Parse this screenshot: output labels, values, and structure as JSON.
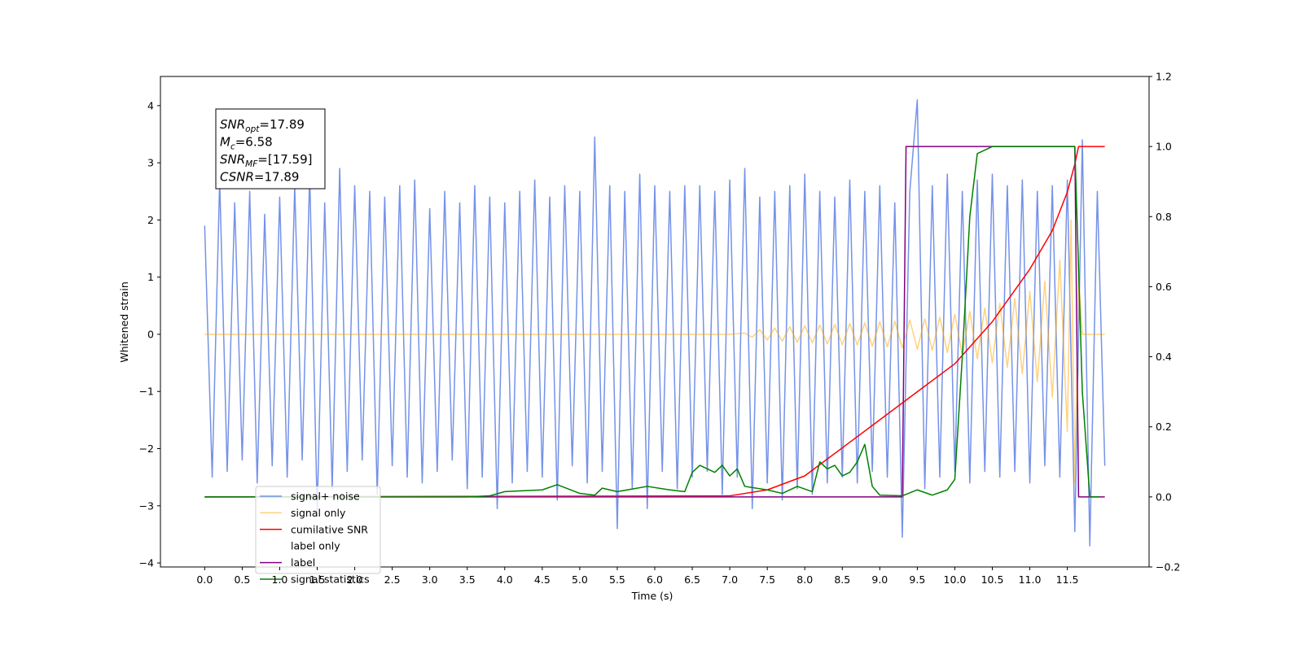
{
  "chart_data": {
    "type": "line",
    "xlabel": "Time (s)",
    "ylabel": "Whitened strain",
    "xlim": [
      -0.59,
      12.59
    ],
    "ylim": [
      -4.07,
      4.51
    ],
    "y2lim": [
      -0.2,
      1.2
    ],
    "xticks": [
      {
        "value": 0,
        "label": "0.0"
      },
      0.5,
      {
        "value": 1,
        "label": "1.0"
      },
      1.5,
      {
        "value": 2,
        "label": "2.0"
      },
      2.5,
      {
        "value": 3,
        "label": "3.0"
      },
      3.5,
      {
        "value": 4,
        "label": "4.0"
      },
      4.5,
      {
        "value": 5,
        "label": "5.0"
      },
      5.5,
      {
        "value": 6,
        "label": "6.0"
      },
      6.5,
      {
        "value": 7,
        "label": "7.0"
      },
      7.5,
      {
        "value": 8,
        "label": "8.0"
      },
      8.5,
      {
        "value": 9,
        "label": "9.0"
      },
      9.5,
      {
        "value": 10,
        "label": "10.0"
      },
      10.5,
      {
        "value": 11,
        "label": "11.0"
      },
      11.5
    ],
    "yticks": [
      {
        "value": -4,
        "label": "−4"
      },
      {
        "value": -3,
        "label": "−3"
      },
      {
        "value": -2,
        "label": "−2"
      },
      {
        "value": -1,
        "label": "−1"
      },
      0,
      1,
      2,
      3,
      4
    ],
    "y2ticks": [
      {
        "value": -0.2,
        "label": "−0.2"
      },
      {
        "value": 0,
        "label": "0.0"
      },
      0.2,
      0.4,
      0.6,
      0.8,
      {
        "value": 1,
        "label": "1.0"
      },
      1.2
    ],
    "annotation": [
      [
        "SNR",
        "opt",
        "=17.89"
      ],
      [
        "M",
        "c",
        "=6.58"
      ],
      [
        "SNR",
        "MF",
        "=[17.59]"
      ],
      [
        "CSNR",
        "",
        "=17.89"
      ]
    ],
    "series": [
      {
        "name": "signal+ noise",
        "color": "#7592e8",
        "x": [
          0,
          0.1,
          0.2,
          0.3,
          0.4,
          0.5,
          0.6,
          0.7,
          0.8,
          0.9,
          1,
          1.1,
          1.2,
          1.3,
          1.4,
          1.5,
          1.6,
          1.7,
          1.8,
          1.9,
          2,
          2.1,
          2.2,
          2.3,
          2.4,
          2.5,
          2.6,
          2.7,
          2.8,
          2.9,
          3,
          3.1,
          3.2,
          3.3,
          3.4,
          3.5,
          3.6,
          3.7,
          3.8,
          3.9,
          4,
          4.1,
          4.2,
          4.3,
          4.4,
          4.5,
          4.6,
          4.7,
          4.8,
          4.9,
          5,
          5.1,
          5.2,
          5.3,
          5.4,
          5.5,
          5.6,
          5.7,
          5.8,
          5.9,
          6,
          6.1,
          6.2,
          6.3,
          6.4,
          6.5,
          6.6,
          6.7,
          6.8,
          6.9,
          7,
          7.1,
          7.2,
          7.3,
          7.4,
          7.5,
          7.6,
          7.7,
          7.8,
          7.9,
          8,
          8.1,
          8.2,
          8.3,
          8.4,
          8.5,
          8.6,
          8.7,
          8.8,
          8.9,
          9,
          9.1,
          9.2,
          9.3,
          9.4,
          9.5,
          9.6,
          9.7,
          9.8,
          9.9,
          10,
          10.1,
          10.2,
          10.3,
          10.4,
          10.5,
          10.6,
          10.7,
          10.8,
          10.9,
          11,
          11.1,
          11.2,
          11.3,
          11.4,
          11.5,
          11.6,
          11.7,
          11.8,
          11.9,
          12
        ],
        "values": [
          1.9,
          -2.5,
          2.7,
          -2.4,
          2.3,
          -2.2,
          2.5,
          -2.6,
          2.1,
          -2.3,
          2.4,
          -2.5,
          2.6,
          -2.2,
          2.8,
          -3.1,
          2.3,
          -2.7,
          2.9,
          -2.4,
          2.6,
          -2.2,
          2.5,
          -2.8,
          2.4,
          -2.3,
          2.6,
          -2.5,
          2.7,
          -2.6,
          2.2,
          -2.4,
          2.5,
          -2.2,
          2.3,
          -2.7,
          2.6,
          -2.5,
          2.4,
          -3.05,
          2.3,
          -2.6,
          2.5,
          -2.4,
          2.7,
          -2.5,
          2.4,
          -2.9,
          2.6,
          -2.3,
          2.5,
          -2.6,
          3.45,
          -2.4,
          2.6,
          -3.4,
          2.5,
          -2.7,
          2.8,
          -3.05,
          2.6,
          -2.4,
          2.5,
          -2.7,
          2.6,
          -2.5,
          2.6,
          -2.4,
          2.5,
          -2.8,
          2.7,
          -2.5,
          2.9,
          -3.05,
          2.4,
          -2.6,
          2.5,
          -2.9,
          2.6,
          -2.7,
          2.8,
          -2.8,
          2.5,
          -2.6,
          2.4,
          -2.5,
          2.7,
          -2.6,
          2.5,
          -2.4,
          2.6,
          -2.5,
          2.3,
          -3.55,
          2.5,
          4.1,
          -2.7,
          2.6,
          -2.5,
          2.8,
          -2.4,
          2.5,
          -2.6,
          2.7,
          -2.4,
          2.8,
          -2.5,
          2.6,
          -2.4,
          2.7,
          -2.6,
          2.5,
          -2.3,
          2.6,
          -2.5,
          2.7,
          -3.45,
          3.4,
          -3.7,
          2.5,
          -2.3
        ]
      },
      {
        "name": "signal only",
        "color": "#ffa500",
        "alpha": 0.5,
        "x": [
          0,
          7,
          7.2,
          7.3,
          7.4,
          7.5,
          7.6,
          7.7,
          7.8,
          7.9,
          8,
          8.1,
          8.2,
          8.3,
          8.4,
          8.5,
          8.6,
          8.7,
          8.8,
          8.9,
          9,
          9.1,
          9.2,
          9.3,
          9.4,
          9.5,
          9.6,
          9.7,
          9.8,
          9.9,
          10,
          10.1,
          10.2,
          10.3,
          10.4,
          10.5,
          10.6,
          10.7,
          10.8,
          10.9,
          11,
          11.1,
          11.2,
          11.3,
          11.4,
          11.5,
          11.55,
          11.6,
          11.65,
          11.7,
          12
        ],
        "values": [
          0,
          0,
          0.02,
          -0.05,
          0.08,
          -0.1,
          0.11,
          -0.12,
          0.13,
          -0.14,
          0.15,
          -0.15,
          0.16,
          -0.17,
          0.17,
          -0.18,
          0.19,
          -0.19,
          0.2,
          -0.21,
          0.22,
          -0.22,
          0.23,
          -0.24,
          0.25,
          -0.26,
          0.27,
          -0.28,
          0.3,
          -0.32,
          0.35,
          -0.37,
          0.4,
          -0.43,
          0.46,
          -0.5,
          0.54,
          -0.58,
          0.63,
          -0.69,
          0.75,
          -0.83,
          0.93,
          -1.1,
          1.3,
          -1.7,
          2.0,
          -2.6,
          1.0,
          0,
          0
        ]
      },
      {
        "name": "cumilative SNR",
        "color": "#ff0000",
        "axis": "y2",
        "x": [
          0,
          7,
          7.5,
          8,
          8.5,
          9,
          9.5,
          10,
          10.5,
          11,
          11.3,
          11.5,
          11.6,
          11.65,
          11.67,
          12
        ],
        "values": [
          0,
          0.003,
          0.02,
          0.06,
          0.14,
          0.22,
          0.3,
          0.38,
          0.5,
          0.65,
          0.76,
          0.87,
          0.95,
          1.0,
          1.0,
          1.0
        ]
      },
      {
        "name": "label only",
        "color": "#ffffff",
        "axis": "y2",
        "x": [
          0,
          9.3,
          9.35,
          11.6,
          11.65,
          12
        ],
        "values": [
          0,
          0,
          1,
          1,
          0,
          0
        ]
      },
      {
        "name": "label",
        "color": "#800080",
        "axis": "y2",
        "x": [
          0,
          9.3,
          9.35,
          11.6,
          11.65,
          12
        ],
        "values": [
          0,
          0,
          1,
          1,
          0,
          0
        ]
      },
      {
        "name": "signal statistics",
        "color": "#008000",
        "axis": "y2",
        "x": [
          0,
          3.5,
          3.8,
          4,
          4.5,
          4.7,
          5,
          5.2,
          5.3,
          5.5,
          5.9,
          6.2,
          6.4,
          6.5,
          6.6,
          6.8,
          6.9,
          7,
          7.1,
          7.2,
          7.5,
          7.7,
          7.9,
          8.1,
          8.2,
          8.3,
          8.4,
          8.5,
          8.6,
          8.7,
          8.8,
          8.9,
          9,
          9.3,
          9.5,
          9.7,
          9.9,
          10,
          10.1,
          10.2,
          10.3,
          10.5,
          11.6,
          11.7,
          11.8,
          11.93
        ],
        "values": [
          0,
          0,
          0.003,
          0.015,
          0.02,
          0.035,
          0.01,
          0.005,
          0.025,
          0.015,
          0.03,
          0.02,
          0.015,
          0.07,
          0.09,
          0.07,
          0.09,
          0.06,
          0.08,
          0.03,
          0.02,
          0.01,
          0.03,
          0.015,
          0.1,
          0.08,
          0.09,
          0.06,
          0.07,
          0.1,
          0.15,
          0.03,
          0.005,
          0.003,
          0.02,
          0.005,
          0.02,
          0.05,
          0.4,
          0.8,
          0.98,
          1.0,
          1.0,
          0.3,
          0,
          0
        ]
      }
    ]
  }
}
